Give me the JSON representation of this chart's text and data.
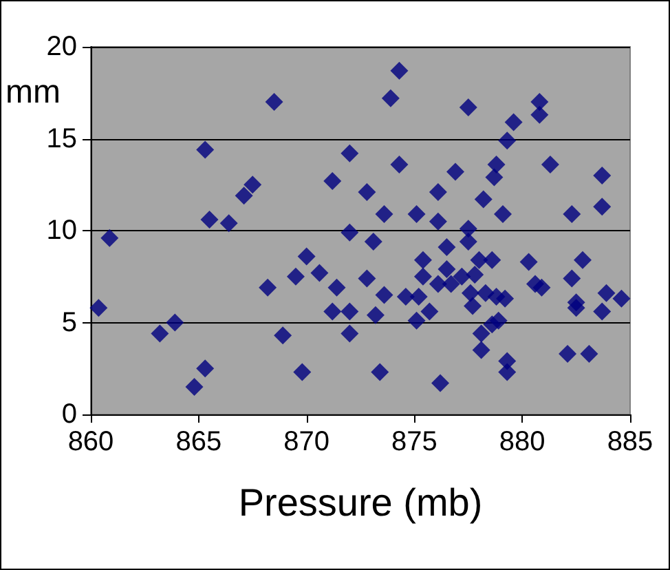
{
  "chart_data": {
    "type": "scatter",
    "xlabel": "Pressure (mb)",
    "ylabel": "mm",
    "x": [
      860.36,
      860.87,
      863.2,
      863.9,
      864.8,
      865.3,
      865.3,
      865.5,
      866.4,
      867.1,
      867.5,
      868.2,
      868.5,
      868.9,
      869.5,
      869.8,
      870.0,
      870.6,
      871.2,
      871.4,
      871.2,
      872.0,
      872.0,
      872.0,
      872.0,
      872.8,
      872.8,
      873.1,
      873.2,
      873.4,
      873.6,
      873.6,
      873.9,
      874.3,
      874.3,
      874.6,
      875.1,
      875.1,
      875.2,
      875.4,
      875.4,
      875.7,
      876.1,
      876.1,
      876.1,
      876.2,
      876.5,
      876.5,
      876.7,
      876.9,
      877.2,
      877.5,
      877.5,
      877.5,
      877.6,
      877.8,
      877.7,
      878.0,
      878.2,
      878.3,
      878.1,
      878.1,
      878.6,
      878.6,
      878.7,
      878.8,
      878.8,
      878.9,
      879.2,
      879.1,
      879.3,
      879.3,
      879.3,
      879.6,
      880.3,
      880.6,
      880.8,
      880.8,
      880.9,
      881.3,
      882.1,
      882.3,
      882.3,
      882.5,
      882.5,
      882.8,
      883.1,
      883.7,
      883.7,
      883.7,
      883.9,
      884.6
    ],
    "values": [
      5.8,
      9.6,
      4.4,
      5.0,
      1.5,
      2.5,
      14.4,
      10.6,
      10.4,
      11.9,
      12.5,
      6.9,
      17.0,
      4.3,
      7.5,
      2.3,
      8.6,
      7.7,
      12.7,
      6.9,
      5.6,
      14.2,
      9.9,
      5.6,
      4.4,
      12.1,
      7.4,
      9.4,
      5.4,
      2.3,
      10.9,
      6.5,
      17.2,
      18.7,
      13.6,
      6.4,
      10.9,
      5.1,
      6.4,
      8.4,
      7.5,
      5.6,
      12.1,
      10.5,
      7.1,
      1.7,
      9.1,
      7.9,
      7.1,
      13.2,
      7.5,
      16.7,
      10.1,
      9.4,
      6.6,
      7.6,
      5.9,
      8.4,
      11.7,
      6.6,
      4.4,
      3.5,
      8.4,
      4.9,
      12.9,
      13.6,
      6.4,
      5.1,
      6.3,
      10.9,
      14.9,
      2.9,
      2.3,
      15.9,
      8.3,
      7.1,
      16.3,
      17.0,
      6.9,
      13.6,
      3.3,
      10.9,
      7.4,
      6.1,
      5.8,
      8.4,
      3.3,
      13.0,
      11.3,
      5.6,
      6.6,
      6.3
    ],
    "color": "#000080",
    "marker": "diamond",
    "grid": "y",
    "xlim": [
      860,
      885
    ],
    "xticks": [
      860,
      865,
      870,
      875,
      880,
      885
    ],
    "ylim": [
      0,
      20
    ],
    "yticks": [
      0,
      5,
      10,
      15,
      20
    ]
  }
}
